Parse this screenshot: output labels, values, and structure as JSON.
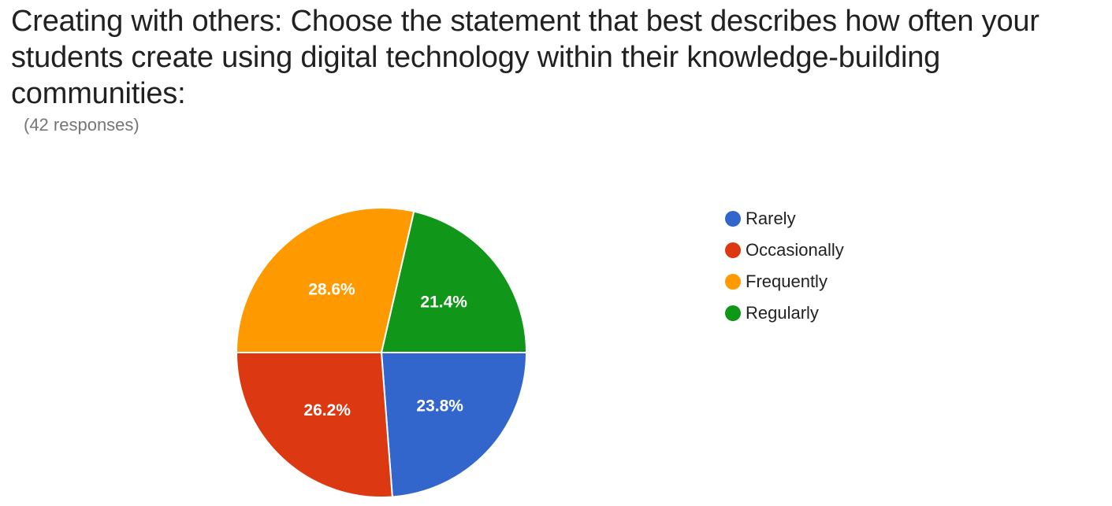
{
  "question": {
    "title": "Creating with others: Choose the statement that best describes how often your students create using digital technology within their knowledge-building communities:",
    "response_count": "(42 responses)"
  },
  "chart_data": {
    "type": "pie",
    "title": "",
    "legend_position": "right",
    "slices": [
      {
        "label": "Rarely",
        "value": 23.8,
        "display": "23.8%",
        "color": "#3366cc"
      },
      {
        "label": "Occasionally",
        "value": 26.2,
        "display": "26.2%",
        "color": "#dc3912"
      },
      {
        "label": "Frequently",
        "value": 28.6,
        "display": "28.6%",
        "color": "#ff9900"
      },
      {
        "label": "Regularly",
        "value": 21.4,
        "display": "21.4%",
        "color": "#109618"
      }
    ]
  }
}
